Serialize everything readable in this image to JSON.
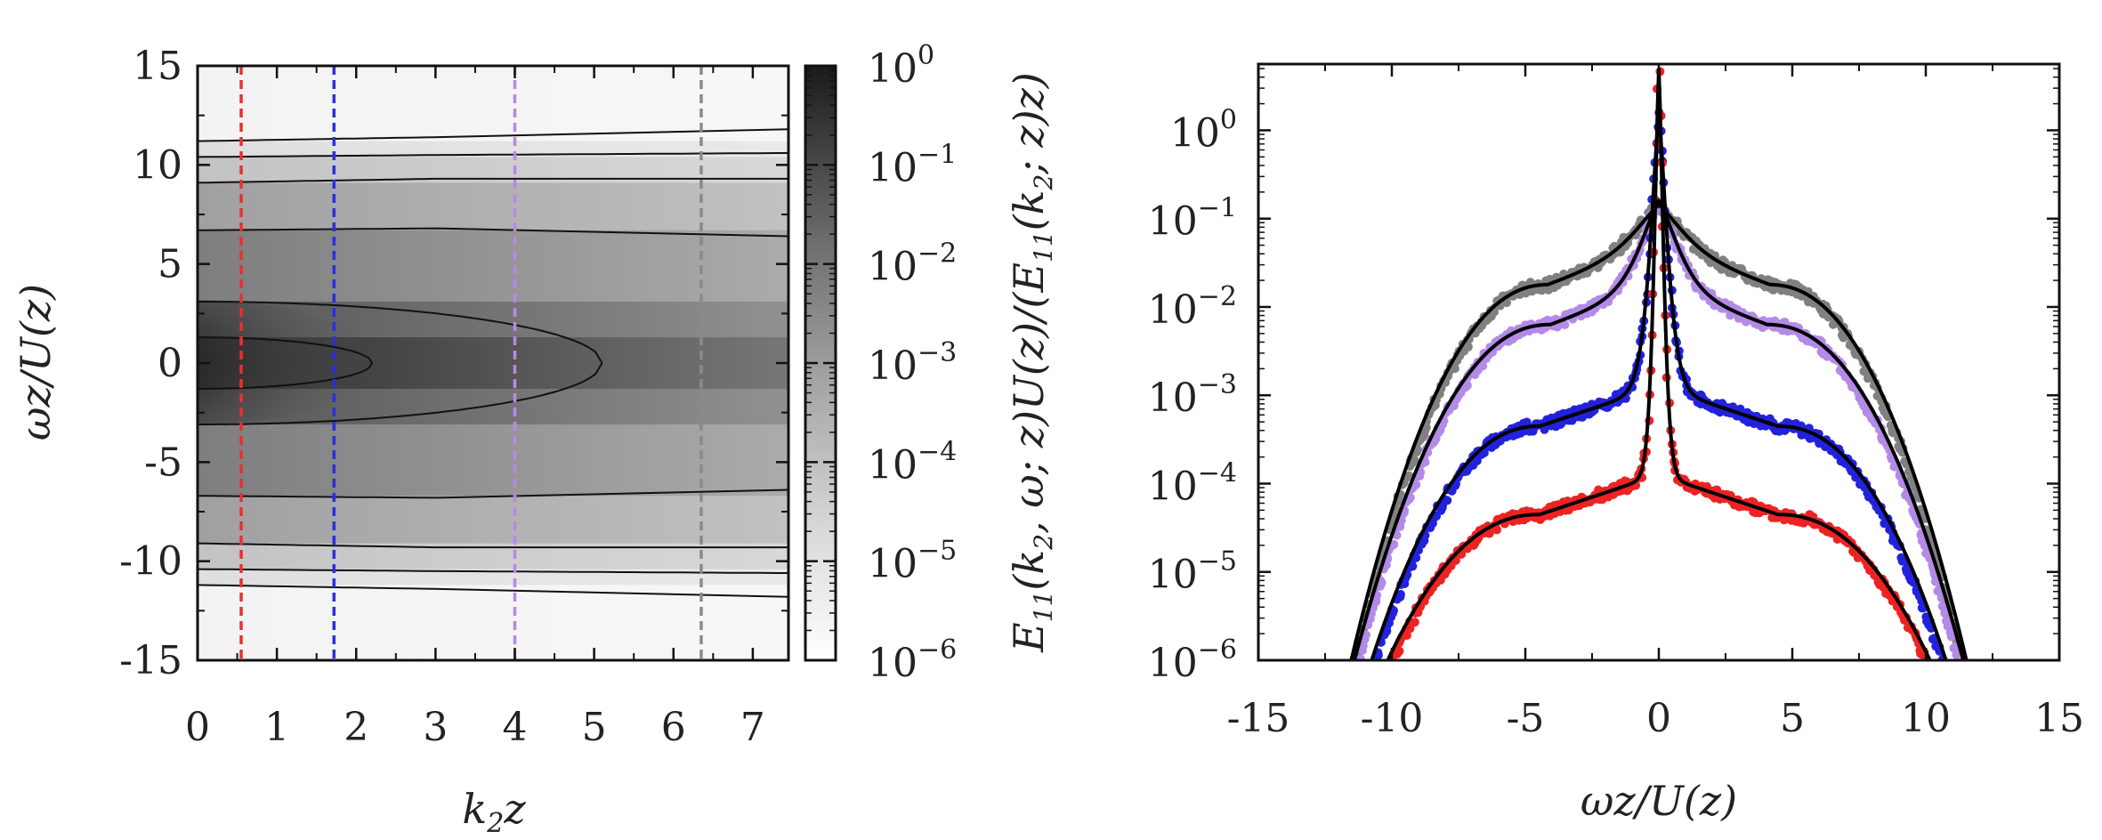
{
  "chart_data": [
    {
      "id": "left",
      "type": "heatmap",
      "title": "",
      "xlabel": "k2z",
      "ylabel": "ωz/U(z)",
      "xlim": [
        0,
        7.45
      ],
      "ylim": [
        -15,
        15
      ],
      "xticks": [
        "0",
        "1",
        "2",
        "3",
        "4",
        "5",
        "6",
        "7"
      ],
      "yticks": [
        "15",
        "10",
        "5",
        "0",
        "-5",
        "-10",
        "-15"
      ],
      "colorbar": {
        "scale": "log",
        "range": [
          1e-06,
          1
        ],
        "labels": [
          {
            "base": "10",
            "exp": "0"
          },
          {
            "base": "10",
            "exp": "−1"
          },
          {
            "base": "10",
            "exp": "−2"
          },
          {
            "base": "10",
            "exp": "−3"
          },
          {
            "base": "10",
            "exp": "−4"
          },
          {
            "base": "10",
            "exp": "−5"
          },
          {
            "base": "10",
            "exp": "−6"
          }
        ]
      },
      "contours": [
        {
          "level": "1e-1",
          "half_width_at": [
            [
              0,
              1.3
            ],
            [
              1.5,
              1.2
            ],
            [
              2.2,
              0.0
            ]
          ]
        },
        {
          "level": "1e-2",
          "half_width_at": [
            [
              0,
              3.1
            ],
            [
              3,
              2.7
            ],
            [
              5.1,
              0.0
            ]
          ]
        },
        {
          "level": "1e-3",
          "half_width_at": [
            [
              0,
              6.7
            ],
            [
              3,
              6.8
            ],
            [
              7.45,
              6.4
            ]
          ]
        },
        {
          "level": "1e-4",
          "half_width_at": [
            [
              0,
              9.1
            ],
            [
              3,
              9.3
            ],
            [
              7.45,
              9.3
            ]
          ]
        },
        {
          "level": "1e-5",
          "half_width_at": [
            [
              0,
              10.4
            ],
            [
              3,
              10.5
            ],
            [
              7.45,
              10.6
            ]
          ]
        },
        {
          "level": "1e-6",
          "half_width_at": [
            [
              0,
              11.2
            ],
            [
              3,
              11.4
            ],
            [
              7.45,
              11.8
            ]
          ]
        }
      ],
      "vertical_lines": [
        {
          "x": 0.55,
          "color": "#e8302f"
        },
        {
          "x": 1.72,
          "color": "#2d2ddd"
        },
        {
          "x": 4.0,
          "color": "#b48ae8"
        },
        {
          "x": 6.35,
          "color": "#8a8a8a"
        }
      ]
    },
    {
      "id": "right",
      "type": "scatter",
      "title": "",
      "xlabel": "ωz/U(z)",
      "ylabel": "E11(k2,ω;z)U(z)/(E11(k2;z)z)",
      "xlim": [
        -15,
        15
      ],
      "ylim_log10": [
        -6,
        0.75
      ],
      "yscale": "log",
      "xticks": [
        "-15",
        "-10",
        "-5",
        "0",
        "5",
        "10",
        "15"
      ],
      "yticks": [
        {
          "base": "10",
          "exp": "0"
        },
        {
          "base": "10",
          "exp": "−1"
        },
        {
          "base": "10",
          "exp": "−2"
        },
        {
          "base": "10",
          "exp": "−3"
        },
        {
          "base": "10",
          "exp": "−4"
        },
        {
          "base": "10",
          "exp": "−5"
        },
        {
          "base": "10",
          "exp": "−6"
        }
      ],
      "series": [
        {
          "name": "k2z=6.35",
          "color": "#808080",
          "peak_log10": -0.85,
          "plateau_log10": -1.3,
          "core_width": 1.3,
          "plateau_width": 4.1,
          "tail_width": 7.6,
          "cutoff": 11.5
        },
        {
          "name": "k2z=4.0",
          "color": "#b48ae8",
          "peak_log10": -0.8,
          "plateau_log10": -1.75,
          "core_width": 1.0,
          "plateau_width": 4.0,
          "tail_width": 7.4,
          "cutoff": 11.4
        },
        {
          "name": "k2z=1.72",
          "color": "#2222dd",
          "peak_log10": 0.15,
          "plateau_log10": -2.9,
          "core_width": 0.45,
          "plateau_width": 4.4,
          "tail_width": 7.6,
          "cutoff": 10.8
        },
        {
          "name": "k2z=0.55",
          "color": "#ee2222",
          "peak_log10": 0.7,
          "plateau_log10": -3.9,
          "core_width": 0.25,
          "plateau_width": 4.4,
          "tail_width": 7.4,
          "cutoff": 10.3
        }
      ]
    }
  ]
}
